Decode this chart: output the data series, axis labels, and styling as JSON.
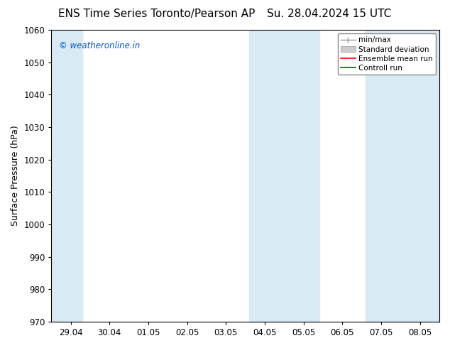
{
  "title_left": "ENS Time Series Toronto/Pearson AP",
  "title_right": "Su. 28.04.2024 15 UTC",
  "ylabel": "Surface Pressure (hPa)",
  "ylim": [
    970,
    1060
  ],
  "yticks": [
    970,
    980,
    990,
    1000,
    1010,
    1020,
    1030,
    1040,
    1050,
    1060
  ],
  "xtick_labels": [
    "29.04",
    "30.04",
    "01.05",
    "02.05",
    "03.05",
    "04.05",
    "05.05",
    "06.05",
    "07.05",
    "08.05"
  ],
  "xtick_positions": [
    0,
    1,
    2,
    3,
    4,
    5,
    6,
    7,
    8,
    9
  ],
  "shaded_bands": [
    {
      "xmin": -0.5,
      "xmax": 0.3
    },
    {
      "xmin": 4.6,
      "xmax": 6.4
    },
    {
      "xmin": 7.6,
      "xmax": 9.5
    }
  ],
  "shade_color": "#daeaf5",
  "watermark_text": "© weatheronline.in",
  "watermark_color": "#0055cc",
  "background_color": "#ffffff",
  "legend_items": [
    {
      "label": "min/max",
      "color": "#aaaaaa",
      "style": "errorbar"
    },
    {
      "label": "Standard deviation",
      "color": "#cccccc",
      "style": "bar"
    },
    {
      "label": "Ensemble mean run",
      "color": "#ff0000",
      "style": "line"
    },
    {
      "label": "Controll run",
      "color": "#008800",
      "style": "line"
    }
  ],
  "title_fontsize": 11,
  "tick_label_fontsize": 8.5,
  "ylabel_fontsize": 9,
  "legend_fontsize": 7.5
}
